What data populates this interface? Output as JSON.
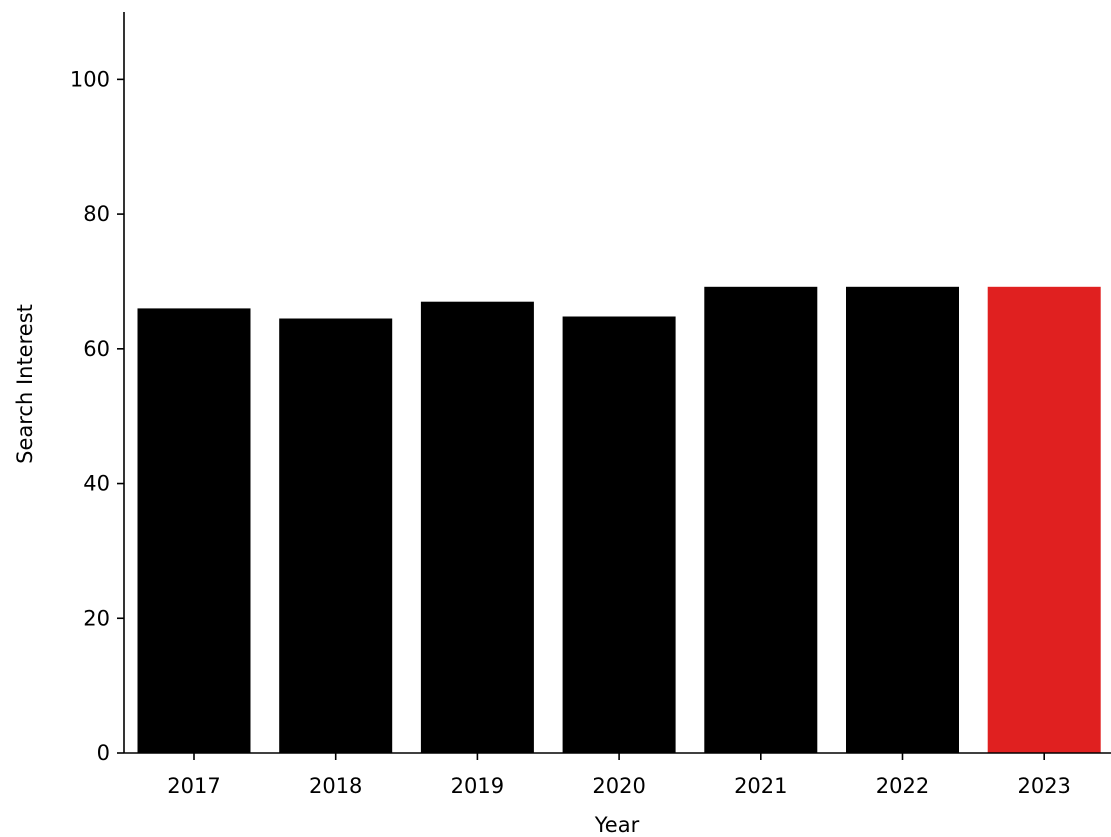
{
  "chart_data": {
    "type": "bar",
    "title": "",
    "xlabel": "Year",
    "ylabel": "Search Interest",
    "categories": [
      "2017",
      "2018",
      "2019",
      "2020",
      "2021",
      "2022",
      "2023"
    ],
    "values": [
      66,
      64.5,
      67,
      64.8,
      69.2,
      69.2,
      69.2
    ],
    "ylim": [
      0,
      110
    ],
    "yticks": [
      0,
      20,
      40,
      60,
      80,
      100
    ],
    "grid": false,
    "legend": "none",
    "colors": {
      "bar": "#000000",
      "highlight": "#e02020",
      "highlight_category": "2023"
    }
  }
}
